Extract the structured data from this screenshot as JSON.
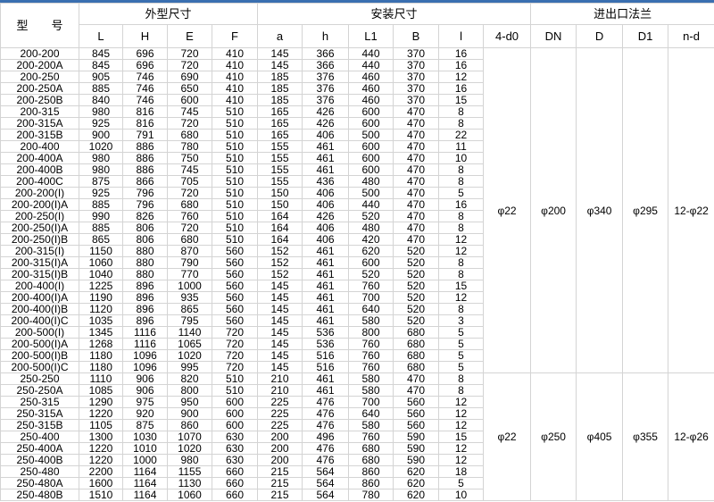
{
  "header": {
    "model": "型　　号",
    "group_outline": "外型尺寸",
    "group_install": "安装尺寸",
    "group_flange": "进出口法兰",
    "columns": [
      "L",
      "H",
      "E",
      "F",
      "a",
      "h",
      "L1",
      "B",
      "l",
      "4-d0",
      "DN",
      "D",
      "D1",
      "n-d"
    ]
  },
  "accent_color": "#3a6fb0",
  "groups": [
    {
      "flange": {
        "d0": "φ22",
        "DN": "φ200",
        "D": "φ340",
        "D1": "φ295",
        "nd": "12-φ22"
      },
      "rows": [
        [
          "200-200",
          "845",
          "696",
          "720",
          "410",
          "145",
          "366",
          "440",
          "370",
          "16"
        ],
        [
          "200-200A",
          "845",
          "696",
          "720",
          "410",
          "145",
          "366",
          "440",
          "370",
          "16"
        ],
        [
          "200-250",
          "905",
          "746",
          "690",
          "410",
          "185",
          "376",
          "460",
          "370",
          "12"
        ],
        [
          "200-250A",
          "885",
          "746",
          "650",
          "410",
          "185",
          "376",
          "460",
          "370",
          "16"
        ],
        [
          "200-250B",
          "840",
          "746",
          "600",
          "410",
          "185",
          "376",
          "460",
          "370",
          "15"
        ],
        [
          "200-315",
          "980",
          "816",
          "745",
          "510",
          "165",
          "426",
          "600",
          "470",
          "8"
        ],
        [
          "200-315A",
          "925",
          "816",
          "720",
          "510",
          "165",
          "426",
          "600",
          "470",
          "8"
        ],
        [
          "200-315B",
          "900",
          "791",
          "680",
          "510",
          "165",
          "406",
          "500",
          "470",
          "22"
        ],
        [
          "200-400",
          "1020",
          "886",
          "780",
          "510",
          "155",
          "461",
          "600",
          "470",
          "11"
        ],
        [
          "200-400A",
          "980",
          "886",
          "750",
          "510",
          "155",
          "461",
          "600",
          "470",
          "10"
        ],
        [
          "200-400B",
          "980",
          "886",
          "745",
          "510",
          "155",
          "461",
          "600",
          "470",
          "8"
        ],
        [
          "200-400C",
          "875",
          "866",
          "705",
          "510",
          "155",
          "436",
          "480",
          "470",
          "8"
        ],
        [
          "200-200(I)",
          "925",
          "796",
          "720",
          "510",
          "150",
          "406",
          "500",
          "470",
          "5"
        ],
        [
          "200-200(I)A",
          "885",
          "796",
          "680",
          "510",
          "150",
          "406",
          "440",
          "470",
          "16"
        ],
        [
          "200-250(I)",
          "990",
          "826",
          "760",
          "510",
          "164",
          "426",
          "520",
          "470",
          "8"
        ],
        [
          "200-250(I)A",
          "885",
          "806",
          "720",
          "510",
          "164",
          "406",
          "480",
          "470",
          "8"
        ],
        [
          "200-250(I)B",
          "865",
          "806",
          "680",
          "510",
          "164",
          "406",
          "420",
          "470",
          "12"
        ],
        [
          "200-315(I)",
          "1150",
          "880",
          "870",
          "560",
          "152",
          "461",
          "620",
          "520",
          "12"
        ],
        [
          "200-315(I)A",
          "1060",
          "880",
          "790",
          "560",
          "152",
          "461",
          "600",
          "520",
          "8"
        ],
        [
          "200-315(I)B",
          "1040",
          "880",
          "770",
          "560",
          "152",
          "461",
          "520",
          "520",
          "8"
        ],
        [
          "200-400(I)",
          "1225",
          "896",
          "1000",
          "560",
          "145",
          "461",
          "760",
          "520",
          "15"
        ],
        [
          "200-400(I)A",
          "1190",
          "896",
          "935",
          "560",
          "145",
          "461",
          "700",
          "520",
          "12"
        ],
        [
          "200-400(I)B",
          "1120",
          "896",
          "865",
          "560",
          "145",
          "461",
          "640",
          "520",
          "8"
        ],
        [
          "200-400(I)C",
          "1035",
          "896",
          "795",
          "560",
          "145",
          "461",
          "580",
          "520",
          "3"
        ],
        [
          "200-500(I)",
          "1345",
          "1116",
          "1140",
          "720",
          "145",
          "536",
          "800",
          "680",
          "5"
        ],
        [
          "200-500(I)A",
          "1268",
          "1116",
          "1065",
          "720",
          "145",
          "536",
          "760",
          "680",
          "5"
        ],
        [
          "200-500(I)B",
          "1180",
          "1096",
          "1020",
          "720",
          "145",
          "516",
          "760",
          "680",
          "5"
        ],
        [
          "200-500(I)C",
          "1180",
          "1096",
          "995",
          "720",
          "145",
          "516",
          "760",
          "680",
          "5"
        ]
      ]
    },
    {
      "flange": {
        "d0": "φ22",
        "DN": "φ250",
        "D": "φ405",
        "D1": "φ355",
        "nd": "12-φ26"
      },
      "rows": [
        [
          "250-250",
          "1110",
          "906",
          "820",
          "510",
          "210",
          "461",
          "580",
          "470",
          "8"
        ],
        [
          "250-250A",
          "1085",
          "906",
          "800",
          "510",
          "210",
          "461",
          "580",
          "470",
          "8"
        ],
        [
          "250-315",
          "1290",
          "975",
          "950",
          "600",
          "225",
          "476",
          "700",
          "560",
          "12"
        ],
        [
          "250-315A",
          "1220",
          "920",
          "900",
          "600",
          "225",
          "476",
          "640",
          "560",
          "12"
        ],
        [
          "250-315B",
          "1105",
          "875",
          "860",
          "600",
          "225",
          "476",
          "580",
          "560",
          "12"
        ],
        [
          "250-400",
          "1300",
          "1030",
          "1070",
          "630",
          "200",
          "496",
          "760",
          "590",
          "15"
        ],
        [
          "250-400A",
          "1220",
          "1010",
          "1020",
          "630",
          "200",
          "476",
          "680",
          "590",
          "12"
        ],
        [
          "250-400B",
          "1220",
          "1000",
          "980",
          "630",
          "200",
          "476",
          "680",
          "590",
          "12"
        ],
        [
          "250-480",
          "2200",
          "1164",
          "1155",
          "660",
          "215",
          "564",
          "860",
          "620",
          "18"
        ],
        [
          "250-480A",
          "1600",
          "1164",
          "1130",
          "660",
          "215",
          "564",
          "860",
          "620",
          "5"
        ],
        [
          "250-480B",
          "1510",
          "1164",
          "1060",
          "660",
          "215",
          "564",
          "780",
          "620",
          "10"
        ]
      ]
    }
  ]
}
